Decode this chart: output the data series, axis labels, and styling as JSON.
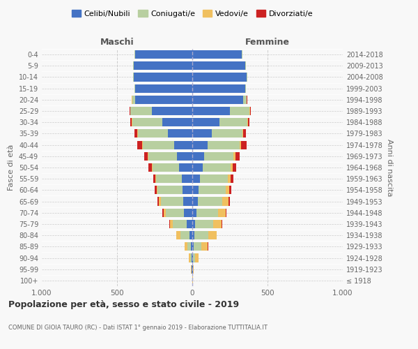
{
  "age_groups": [
    "100+",
    "95-99",
    "90-94",
    "85-89",
    "80-84",
    "75-79",
    "70-74",
    "65-69",
    "60-64",
    "55-59",
    "50-54",
    "45-49",
    "40-44",
    "35-39",
    "30-34",
    "25-29",
    "20-24",
    "15-19",
    "10-14",
    "5-9",
    "0-4"
  ],
  "birth_years": [
    "≤ 1918",
    "1919-1923",
    "1924-1928",
    "1929-1933",
    "1934-1938",
    "1939-1943",
    "1944-1948",
    "1949-1953",
    "1954-1958",
    "1959-1963",
    "1964-1968",
    "1969-1973",
    "1974-1978",
    "1979-1983",
    "1984-1988",
    "1989-1993",
    "1994-1998",
    "1999-2003",
    "2004-2008",
    "2009-2013",
    "2014-2018"
  ],
  "colors": {
    "celibi": "#4472c4",
    "coniugati": "#b8cfa0",
    "vedovi": "#f0c060",
    "divorziati": "#cc2222"
  },
  "maschi": {
    "celibi": [
      2,
      3,
      5,
      8,
      20,
      35,
      55,
      60,
      65,
      70,
      90,
      100,
      120,
      160,
      200,
      270,
      380,
      380,
      390,
      390,
      380
    ],
    "coniugati": [
      0,
      2,
      8,
      25,
      60,
      95,
      120,
      150,
      165,
      170,
      175,
      190,
      210,
      200,
      200,
      140,
      20,
      5,
      5,
      5,
      5
    ],
    "vedovi": [
      0,
      2,
      8,
      18,
      25,
      20,
      15,
      12,
      8,
      5,
      5,
      5,
      5,
      5,
      3,
      2,
      2,
      0,
      0,
      0,
      0
    ],
    "divorziati": [
      0,
      0,
      0,
      2,
      3,
      5,
      8,
      8,
      10,
      15,
      20,
      25,
      30,
      20,
      10,
      5,
      2,
      0,
      0,
      0,
      0
    ]
  },
  "femmine": {
    "celibi": [
      2,
      3,
      5,
      8,
      15,
      20,
      30,
      35,
      40,
      50,
      70,
      80,
      100,
      130,
      180,
      250,
      340,
      350,
      360,
      350,
      330
    ],
    "coniugati": [
      0,
      3,
      15,
      50,
      90,
      120,
      140,
      165,
      180,
      185,
      185,
      195,
      215,
      205,
      185,
      130,
      20,
      5,
      5,
      5,
      5
    ],
    "vedovi": [
      2,
      5,
      20,
      45,
      55,
      55,
      50,
      40,
      25,
      18,
      12,
      10,
      8,
      5,
      5,
      3,
      2,
      0,
      0,
      0,
      0
    ],
    "divorziati": [
      0,
      0,
      0,
      2,
      3,
      5,
      8,
      8,
      15,
      20,
      25,
      30,
      40,
      18,
      8,
      5,
      2,
      0,
      0,
      0,
      0
    ]
  },
  "title": "Popolazione per età, sesso e stato civile - 2019",
  "subtitle": "COMUNE DI GIOIA TAURO (RC) - Dati ISTAT 1° gennaio 2019 - Elaborazione TUTTITALIA.IT",
  "xlabel_left": "Maschi",
  "xlabel_right": "Femmine",
  "ylabel_left": "Fasce di età",
  "ylabel_right": "Anni di nascita",
  "xlim": 1000,
  "legend_labels": [
    "Celibi/Nubili",
    "Coniugati/e",
    "Vedovi/e",
    "Divorziati/e"
  ],
  "bg_color": "#f8f8f8",
  "grid_color": "#cccccc"
}
